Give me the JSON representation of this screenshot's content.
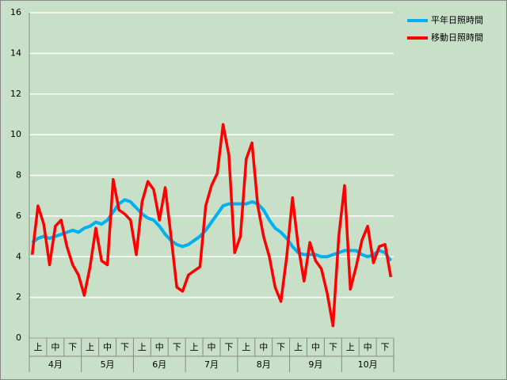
{
  "chart_data": {
    "type": "line",
    "categories": [
      null,
      "上",
      null,
      null,
      "中",
      null,
      null,
      "下",
      null,
      null,
      "上",
      null,
      null,
      "中",
      null,
      null,
      "下",
      null,
      null,
      "上",
      null,
      null,
      "中",
      null,
      null,
      "下",
      null,
      null,
      "上",
      null,
      null,
      "中",
      null,
      null,
      "下",
      null,
      null,
      "上",
      null,
      null,
      "中",
      null,
      null,
      "下",
      null,
      null,
      "上",
      null,
      null,
      "中",
      null,
      null,
      "下",
      null,
      null,
      "上",
      null,
      null,
      "中",
      null,
      null,
      "下",
      null
    ],
    "months": [
      "4月",
      "5月",
      "6月",
      "7月",
      "8月",
      "9月",
      "10月"
    ],
    "series": [
      {
        "name": "平年日照時間",
        "color": "#00b0f0",
        "values": [
          4.7,
          4.9,
          5.0,
          4.9,
          5.0,
          5.1,
          5.2,
          5.3,
          5.2,
          5.4,
          5.5,
          5.7,
          5.6,
          5.8,
          6.2,
          6.6,
          6.8,
          6.7,
          6.4,
          6.1,
          5.9,
          5.8,
          5.5,
          5.1,
          4.8,
          4.6,
          4.5,
          4.6,
          4.8,
          5.0,
          5.3,
          5.7,
          6.1,
          6.5,
          6.6,
          6.6,
          6.6,
          6.6,
          6.7,
          6.6,
          6.3,
          5.8,
          5.4,
          5.2,
          4.9,
          4.5,
          4.2,
          4.1,
          4.1,
          4.1,
          4.0,
          4.0,
          4.1,
          4.2,
          4.3,
          4.3,
          4.3,
          4.1,
          4.0,
          4.1,
          4.3,
          4.2,
          3.8
        ]
      },
      {
        "name": "移動日照時間",
        "color": "#ff0000",
        "values": [
          4.1,
          6.5,
          5.6,
          3.6,
          5.5,
          5.8,
          4.5,
          3.6,
          3.1,
          2.1,
          3.5,
          5.4,
          3.8,
          3.6,
          7.8,
          6.3,
          6.1,
          5.8,
          4.1,
          6.7,
          7.7,
          7.3,
          5.8,
          7.4,
          5.0,
          2.5,
          2.3,
          3.1,
          3.3,
          3.5,
          6.5,
          7.5,
          8.1,
          10.5,
          9.0,
          4.2,
          5.0,
          8.8,
          9.6,
          6.5,
          5.0,
          4.0,
          2.5,
          1.8,
          4.0,
          6.9,
          4.5,
          2.8,
          4.7,
          3.8,
          3.4,
          2.2,
          0.6,
          5.0,
          7.5,
          2.4,
          3.5,
          4.8,
          5.5,
          3.7,
          4.5,
          4.6,
          3.0
        ]
      }
    ],
    "ylim": [
      0,
      16
    ],
    "yticks": [
      0,
      2,
      4,
      6,
      8,
      10,
      12,
      14,
      16
    ],
    "grid": true,
    "legend": "top-right"
  }
}
